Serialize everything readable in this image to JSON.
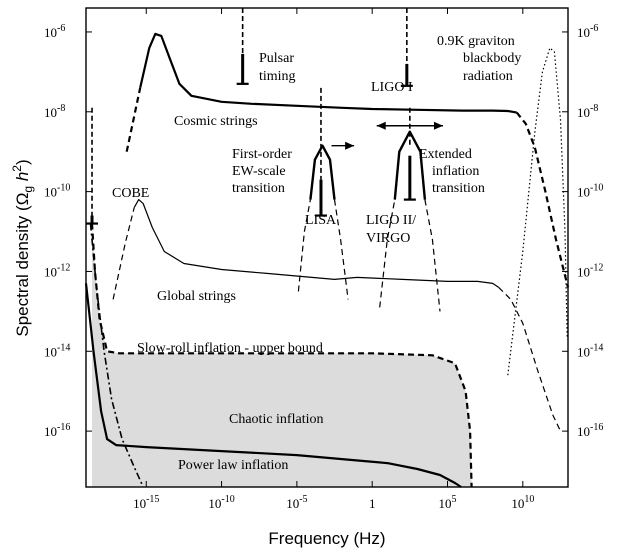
{
  "chart_data": {
    "type": "line",
    "xlabel": "Frequency (Hz)",
    "ylabel_main": "Spectral density (Ω",
    "ylabel_sub": "g",
    "ylabel_h": " h",
    "ylabel_sup": "2",
    "ylabel_close": ")",
    "xscale": "log10",
    "yscale": "log10",
    "xlim_exp": [
      -19,
      13
    ],
    "ylim_exp": [
      -17.4,
      -5.4
    ],
    "x_ticks": [
      {
        "exp": -15,
        "base": "10",
        "power": "-15"
      },
      {
        "exp": -10,
        "base": "10",
        "power": "-10"
      },
      {
        "exp": -5,
        "base": "10",
        "power": "-5"
      },
      {
        "exp": 0,
        "base": "1",
        "power": ""
      },
      {
        "exp": 5,
        "base": "10",
        "power": "5"
      },
      {
        "exp": 10,
        "base": "10",
        "power": "10"
      }
    ],
    "y_ticks": [
      {
        "exp": -6,
        "base": "10",
        "power": "-6"
      },
      {
        "exp": -8,
        "base": "10",
        "power": "-8"
      },
      {
        "exp": -10,
        "base": "10",
        "power": "-10"
      },
      {
        "exp": -12,
        "base": "10",
        "power": "-12"
      },
      {
        "exp": -14,
        "base": "10",
        "power": "-14"
      },
      {
        "exp": -16,
        "base": "10",
        "power": "-16"
      }
    ],
    "shaded_region": {
      "points": [
        [
          -18.6,
          -17.4
        ],
        [
          -18.6,
          -10.8
        ],
        [
          -18.4,
          -12.0
        ],
        [
          -18.1,
          -13.2
        ],
        [
          -17.6,
          -14.0
        ],
        [
          -16.8,
          -14.05
        ],
        [
          -15,
          -14.05
        ],
        [
          -10,
          -14.05
        ],
        [
          -5,
          -14.05
        ],
        [
          0,
          -14.05
        ],
        [
          4,
          -14.1
        ],
        [
          5.5,
          -14.3
        ],
        [
          6.2,
          -15.0
        ],
        [
          6.5,
          -16.0
        ],
        [
          6.6,
          -17.4
        ]
      ]
    },
    "series": [
      {
        "key": "cosmic-strings",
        "style": "bold",
        "segments": [
          {
            "dash": true,
            "points": [
              [
                -16.3,
                -9.0
              ],
              [
                -15.4,
                -7.4
              ]
            ]
          },
          {
            "dash": false,
            "points": [
              [
                -15.4,
                -7.4
              ],
              [
                -14.8,
                -6.4
              ],
              [
                -14.4,
                -6.05
              ],
              [
                -14.0,
                -6.1
              ],
              [
                -13.5,
                -6.6
              ],
              [
                -12.8,
                -7.3
              ],
              [
                -12.0,
                -7.6
              ],
              [
                -10,
                -7.75
              ],
              [
                -8,
                -7.8
              ],
              [
                -5,
                -7.85
              ],
              [
                -2,
                -7.9
              ],
              [
                0,
                -7.93
              ],
              [
                3,
                -7.95
              ],
              [
                6,
                -7.97
              ],
              [
                8,
                -7.97
              ],
              [
                9,
                -7.98
              ],
              [
                9.6,
                -8.02
              ]
            ]
          },
          {
            "dash": true,
            "points": [
              [
                9.6,
                -8.02
              ],
              [
                10.2,
                -8.3
              ],
              [
                10.8,
                -8.9
              ],
              [
                11.5,
                -10.0
              ],
              [
                12.2,
                -11.2
              ],
              [
                13,
                -12.4
              ]
            ]
          }
        ]
      },
      {
        "key": "global-strings",
        "style": "thin",
        "segments": [
          {
            "dash": true,
            "points": [
              [
                -17.2,
                -12.7
              ],
              [
                -16.4,
                -11.3
              ],
              [
                -15.8,
                -10.4
              ]
            ]
          },
          {
            "dash": false,
            "points": [
              [
                -15.8,
                -10.4
              ],
              [
                -15.5,
                -10.2
              ],
              [
                -15.2,
                -10.3
              ],
              [
                -14.6,
                -10.9
              ],
              [
                -13.8,
                -11.5
              ],
              [
                -12.5,
                -11.8
              ],
              [
                -10,
                -11.95
              ],
              [
                -7,
                -12.05
              ],
              [
                -4,
                -12.15
              ],
              [
                -2.5,
                -12.2
              ],
              [
                -1,
                -12.15
              ],
              [
                2,
                -12.2
              ],
              [
                5,
                -12.25
              ],
              [
                7,
                -12.25
              ],
              [
                8,
                -12.3
              ],
              [
                8.4,
                -12.4
              ]
            ]
          },
          {
            "dash": true,
            "points": [
              [
                8.4,
                -12.4
              ],
              [
                9.2,
                -12.7
              ],
              [
                10,
                -13.3
              ],
              [
                11,
                -14.5
              ],
              [
                12,
                -15.6
              ],
              [
                12.5,
                -16.0
              ]
            ]
          }
        ]
      },
      {
        "key": "slow-roll",
        "style": "bold",
        "segments": [
          {
            "dash": true,
            "points": [
              [
                -18.6,
                -10.8
              ],
              [
                -18.4,
                -12.0
              ],
              [
                -18.1,
                -13.2
              ],
              [
                -17.6,
                -14.0
              ],
              [
                -16.8,
                -14.05
              ],
              [
                -15,
                -14.05
              ],
              [
                -10,
                -14.05
              ],
              [
                -5,
                -14.05
              ],
              [
                0,
                -14.05
              ],
              [
                4,
                -14.1
              ],
              [
                5.5,
                -14.3
              ],
              [
                6.2,
                -15.0
              ],
              [
                6.5,
                -16.0
              ],
              [
                6.6,
                -17.4
              ]
            ]
          }
        ]
      },
      {
        "key": "chaotic",
        "style": "bold",
        "segments": [
          {
            "dash": false,
            "points": [
              [
                -19,
                -12.3
              ],
              [
                -18.5,
                -14.0
              ],
              [
                -18.0,
                -15.5
              ],
              [
                -17.6,
                -16.2
              ],
              [
                -17.0,
                -16.35
              ],
              [
                -15,
                -16.4
              ],
              [
                -10,
                -16.5
              ],
              [
                -5,
                -16.6
              ],
              [
                -2,
                -16.7
              ],
              [
                1,
                -16.8
              ],
              [
                3,
                -16.95
              ],
              [
                4.5,
                -17.1
              ],
              [
                5.5,
                -17.3
              ],
              [
                5.9,
                -17.4
              ]
            ]
          }
        ]
      },
      {
        "key": "power-law",
        "style": "dashdot",
        "segments": [
          {
            "dash": true,
            "points": [
              [
                -18.7,
                -10.8
              ],
              [
                -18.3,
                -12.4
              ],
              [
                -17.8,
                -14.0
              ],
              [
                -17.3,
                -15.2
              ],
              [
                -16.6,
                -16.2
              ],
              [
                -15.8,
                -16.9
              ],
              [
                -15.2,
                -17.4
              ]
            ]
          }
        ]
      },
      {
        "key": "graviton",
        "style": "dotted",
        "segments": [
          {
            "dash": true,
            "points": [
              [
                9,
                -14.6
              ],
              [
                10,
                -11.5
              ],
              [
                10.8,
                -8.5
              ],
              [
                11.3,
                -7.0
              ],
              [
                11.8,
                -6.4
              ],
              [
                12.1,
                -6.5
              ],
              [
                12.5,
                -8.2
              ],
              [
                12.8,
                -11.0
              ],
              [
                12.95,
                -13.7
              ]
            ]
          }
        ]
      },
      {
        "key": "first-order-ew",
        "style": "dashed-arch",
        "segments": [
          {
            "dash": true,
            "points": [
              [
                -4.9,
                -12.5
              ],
              [
                -4.5,
                -11.0
              ],
              [
                -4.1,
                -10.2
              ]
            ]
          },
          {
            "dash": false,
            "points": [
              [
                -4.1,
                -10.2
              ],
              [
                -3.8,
                -9.2
              ],
              [
                -3.3,
                -8.85
              ],
              [
                -2.8,
                -9.2
              ],
              [
                -2.5,
                -10.2
              ]
            ]
          },
          {
            "dash": true,
            "points": [
              [
                -2.5,
                -10.2
              ],
              [
                -2.1,
                -11.2
              ],
              [
                -1.6,
                -12.7
              ]
            ]
          }
        ]
      },
      {
        "key": "extended-inflation",
        "style": "dashed-arch",
        "segments": [
          {
            "dash": true,
            "points": [
              [
                0.5,
                -12.9
              ],
              [
                1.0,
                -11.2
              ],
              [
                1.5,
                -10.2
              ]
            ]
          },
          {
            "dash": false,
            "points": [
              [
                1.5,
                -10.2
              ],
              [
                1.8,
                -9.0
              ],
              [
                2.5,
                -8.5
              ],
              [
                3.2,
                -9.0
              ],
              [
                3.5,
                -10.2
              ]
            ]
          },
          {
            "dash": true,
            "points": [
              [
                3.5,
                -10.2
              ],
              [
                4.0,
                -11.2
              ],
              [
                4.5,
                -13.0
              ]
            ]
          }
        ]
      }
    ],
    "vertical_lines": [
      {
        "key": "cobe",
        "x": -18.6,
        "y_from": -7.9,
        "y_to": -10.8,
        "dash": true
      },
      {
        "key": "lisa-vert",
        "x": -3.4,
        "y_from": -7.4,
        "y_to": -9.7,
        "dash": true
      },
      {
        "key": "pulsar-vert",
        "x": -8.6,
        "y_from": -5.4,
        "y_to": -6.55,
        "dash": true
      },
      {
        "key": "ligo-vert",
        "x": 2.3,
        "y_from": -5.4,
        "y_to": -6.8,
        "dash": true
      },
      {
        "key": "ligo2-vert",
        "x": 2.5,
        "y_from": -7.9,
        "y_to": -8.9,
        "dash": true
      }
    ],
    "limits": [
      {
        "key": "pulsar",
        "x": -8.6,
        "y_top": -6.55,
        "y_bottom": -7.3
      },
      {
        "key": "ligo1",
        "x": 2.3,
        "y_top": -6.8,
        "y_bottom": -7.35
      },
      {
        "key": "lisa",
        "x": -3.4,
        "y_top": -9.7,
        "y_bottom": -10.6
      },
      {
        "key": "ligo2",
        "x": 2.5,
        "y_top": -9.1,
        "y_bottom": -10.2
      },
      {
        "key": "cobe",
        "x": -18.6,
        "y_top": -10.6,
        "y_bottom": -10.8
      }
    ],
    "arrows": [
      {
        "key": "ew-right",
        "x1": -2.7,
        "x2": -1.2,
        "y": -8.85,
        "double": false
      },
      {
        "key": "ext-both",
        "x1": 0.3,
        "x2": 4.7,
        "y": -8.35,
        "double": true
      }
    ],
    "annotations": {
      "cobe": "COBE",
      "pulsar_1": "Pulsar",
      "pulsar_2": "timing",
      "ligo1": "LIGO I",
      "graviton_1": "0.9K graviton",
      "graviton_2": "blackbody",
      "graviton_3": "radiation",
      "cosmic": "Cosmic strings",
      "ew_1": "First-order",
      "ew_2": "EW-scale",
      "ew_3": "transition",
      "ext_1": "Extended",
      "ext_2": "inflation",
      "ext_3": "transition",
      "lisa": "LISA",
      "ligo2_1": "LIGO II/",
      "ligo2_2": "VIRGO",
      "global": "Global strings",
      "slowroll": "Slow-roll inflation - upper bound",
      "chaotic": "Chaotic inflation",
      "powerlaw": "Power law inflation"
    }
  }
}
